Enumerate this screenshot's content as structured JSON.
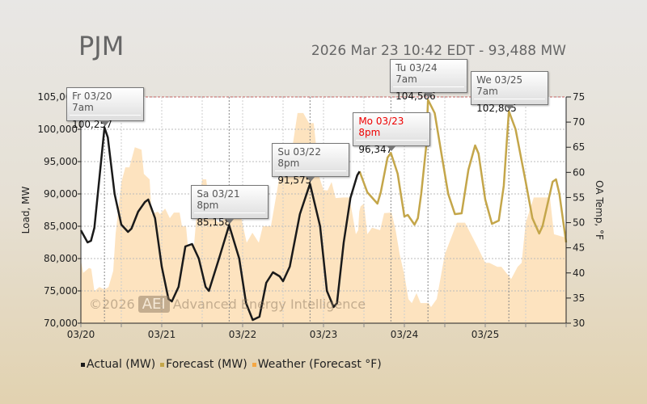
{
  "header": {
    "title": "PJM",
    "subtitle": "2026 Mar 23 10:42 EDT - 93,488 MW"
  },
  "watermark": {
    "copyright": "©2026",
    "logo": "AEI",
    "name": "Advanced Energy Intelligence"
  },
  "colors": {
    "actual": "#1a1a1a",
    "forecast": "#c4a64a",
    "weather": "#fde3bf",
    "legend_weather": "#f5a742",
    "max_line": "#c06060"
  },
  "chart_data": {
    "type": "line",
    "ylabel": "Load, MW",
    "y2label": "OA Temp, °F",
    "ylim": [
      70000,
      105000
    ],
    "y2lim": [
      30,
      75
    ],
    "xlim_hours": [
      0,
      144
    ],
    "yticks": [
      "70,000",
      "75,000",
      "80,000",
      "85,000",
      "90,000",
      "95,000",
      "100,000",
      "105,000"
    ],
    "y2ticks": [
      "30",
      "35",
      "40",
      "45",
      "50",
      "55",
      "60",
      "65",
      "70",
      "75"
    ],
    "xticks": [
      {
        "h": 0,
        "label": "03/20"
      },
      {
        "h": 24,
        "label": "03/21"
      },
      {
        "h": 48,
        "label": "03/22"
      },
      {
        "h": 72,
        "label": "03/23"
      },
      {
        "h": 96,
        "label": "03/24"
      },
      {
        "h": 120,
        "label": "03/25"
      }
    ],
    "legend": [
      "Actual (MW)",
      "Forecast (MW)",
      "Weather (Forecast °F)"
    ],
    "series": [
      {
        "name": "Actual (MW)",
        "points": [
          [
            0,
            84375
          ],
          [
            2,
            82500
          ],
          [
            3,
            82750
          ],
          [
            4,
            84750
          ],
          [
            7,
            100257
          ],
          [
            8,
            98750
          ],
          [
            10,
            90000
          ],
          [
            12,
            85250
          ],
          [
            14,
            84125
          ],
          [
            15,
            84625
          ],
          [
            17,
            87250
          ],
          [
            19,
            88750
          ],
          [
            20,
            89125
          ],
          [
            22,
            86250
          ],
          [
            24,
            78750
          ],
          [
            26,
            73750
          ],
          [
            27,
            73375
          ],
          [
            29,
            75625
          ],
          [
            31,
            81875
          ],
          [
            33,
            82250
          ],
          [
            35,
            80000
          ],
          [
            37,
            75625
          ],
          [
            38,
            75000
          ],
          [
            41,
            80000
          ],
          [
            44,
            85158
          ],
          [
            47,
            80000
          ],
          [
            49,
            73125
          ],
          [
            51,
            70500
          ],
          [
            53,
            71000
          ],
          [
            55,
            76250
          ],
          [
            57,
            77875
          ],
          [
            59,
            77250
          ],
          [
            60,
            76500
          ],
          [
            62,
            78750
          ],
          [
            65,
            86875
          ],
          [
            68,
            91575
          ],
          [
            71,
            85000
          ],
          [
            73,
            75000
          ],
          [
            75,
            72500
          ],
          [
            76,
            73125
          ],
          [
            78,
            82500
          ],
          [
            80,
            89375
          ],
          [
            82,
            92875
          ],
          [
            82.7,
            93488
          ]
        ]
      },
      {
        "name": "Forecast (MW)",
        "points": [
          [
            82.7,
            93488
          ],
          [
            85,
            90250
          ],
          [
            88,
            88500
          ],
          [
            89,
            90250
          ],
          [
            91,
            95625
          ],
          [
            92,
            96347
          ],
          [
            94,
            93125
          ],
          [
            96,
            86500
          ],
          [
            97,
            86750
          ],
          [
            99,
            85250
          ],
          [
            100,
            86250
          ],
          [
            101,
            90000
          ],
          [
            102.5,
            97500
          ],
          [
            103,
            104566
          ],
          [
            105,
            102500
          ],
          [
            107,
            96250
          ],
          [
            109,
            90000
          ],
          [
            111,
            86875
          ],
          [
            113,
            87000
          ],
          [
            115,
            93750
          ],
          [
            117,
            97500
          ],
          [
            118,
            96250
          ],
          [
            120,
            89125
          ],
          [
            122,
            85375
          ],
          [
            124,
            85875
          ],
          [
            125.5,
            91250
          ],
          [
            127,
            102805
          ],
          [
            129,
            100000
          ],
          [
            132,
            91875
          ],
          [
            134,
            86250
          ],
          [
            136,
            83875
          ],
          [
            137,
            85000
          ],
          [
            140,
            91875
          ],
          [
            141,
            92250
          ],
          [
            142,
            90000
          ],
          [
            144,
            82500
          ]
        ]
      },
      {
        "name": "Weather (Forecast °F)",
        "points": [
          [
            0,
            42.5
          ],
          [
            0.7,
            40
          ],
          [
            2.4,
            41
          ],
          [
            3.1,
            40.8
          ],
          [
            4,
            36.4
          ],
          [
            5.5,
            37.2
          ],
          [
            7,
            36.7
          ],
          [
            8.2,
            37.2
          ],
          [
            9.6,
            40.4
          ],
          [
            10.3,
            47.7
          ],
          [
            12,
            58
          ],
          [
            13.2,
            61
          ],
          [
            14.4,
            61
          ],
          [
            16,
            65
          ],
          [
            18,
            64.5
          ],
          [
            18.7,
            59.7
          ],
          [
            20.4,
            58.6
          ],
          [
            21,
            51.7
          ],
          [
            22.8,
            52.2
          ],
          [
            23.5,
            51.7
          ],
          [
            25,
            52.8
          ],
          [
            26.4,
            50.9
          ],
          [
            27.6,
            52
          ],
          [
            29.3,
            52
          ],
          [
            30,
            49.3
          ],
          [
            31.2,
            49.3
          ],
          [
            31.7,
            45.7
          ],
          [
            33.6,
            45.7
          ],
          [
            34.3,
            51.2
          ],
          [
            36,
            58.6
          ],
          [
            37.2,
            58.6
          ],
          [
            38.4,
            51.7
          ],
          [
            40.8,
            50
          ],
          [
            43.9,
            51.2
          ],
          [
            47.5,
            51.2
          ],
          [
            49.2,
            46
          ],
          [
            50.9,
            48
          ],
          [
            52.8,
            46
          ],
          [
            54,
            49.3
          ],
          [
            56.4,
            49.3
          ],
          [
            58.8,
            58.6
          ],
          [
            61.2,
            60.5
          ],
          [
            62.4,
            63.4
          ],
          [
            64.3,
            71.8
          ],
          [
            66,
            71.8
          ],
          [
            67.7,
            69.8
          ],
          [
            69.1,
            69.8
          ],
          [
            70.8,
            59
          ],
          [
            72,
            56.5
          ],
          [
            73.2,
            56.4
          ],
          [
            74.4,
            58.1
          ],
          [
            75.6,
            54.9
          ],
          [
            78,
            55
          ],
          [
            79.7,
            55
          ],
          [
            81.6,
            47.7
          ],
          [
            82.3,
            48.5
          ],
          [
            82.6,
            52.2
          ],
          [
            83,
            53.2
          ],
          [
            84,
            53.8
          ],
          [
            85,
            47.7
          ],
          [
            86.4,
            49
          ],
          [
            88.8,
            48.5
          ],
          [
            90,
            51.9
          ],
          [
            92.2,
            52
          ],
          [
            93.4,
            48.5
          ],
          [
            94.6,
            43.7
          ],
          [
            96,
            39.6
          ],
          [
            97.2,
            34.8
          ],
          [
            98.2,
            34
          ],
          [
            99.6,
            36
          ],
          [
            100.8,
            34
          ],
          [
            103.2,
            34
          ],
          [
            103.9,
            33.2
          ],
          [
            105.6,
            34.8
          ],
          [
            108,
            43.7
          ],
          [
            111.6,
            50
          ],
          [
            114,
            50
          ],
          [
            117.6,
            45.3
          ],
          [
            120,
            42
          ],
          [
            121.2,
            42
          ],
          [
            123.6,
            41.2
          ],
          [
            124.8,
            41.2
          ],
          [
            127.7,
            38.8
          ],
          [
            129.6,
            41.2
          ],
          [
            130.8,
            42
          ],
          [
            132,
            50
          ],
          [
            134.4,
            55
          ],
          [
            139.2,
            55
          ],
          [
            140.4,
            47.7
          ],
          [
            144,
            47
          ]
        ]
      }
    ],
    "annotations": [
      {
        "day": "Fr 03/20 7am",
        "value": "100,257",
        "h": 7,
        "v": 100257,
        "series": "actual",
        "red": false
      },
      {
        "day": "Sa 03/21 8pm",
        "value": "85,158",
        "h": 44,
        "v": 85158,
        "series": "actual",
        "red": false
      },
      {
        "day": "Su 03/22 8pm",
        "value": "91,575",
        "h": 68,
        "v": 91575,
        "series": "actual",
        "red": false
      },
      {
        "day": "Mo 03/23 8pm",
        "value": "96,347",
        "h": 92,
        "v": 96347,
        "series": "forecast",
        "red": true
      },
      {
        "day": "Tu 03/24 7am",
        "value": "104,566",
        "h": 103,
        "v": 104566,
        "series": "forecast",
        "red": false
      },
      {
        "day": "We 03/25 7am",
        "value": "102,805",
        "h": 127,
        "v": 102805,
        "series": "forecast",
        "red": false
      }
    ]
  }
}
